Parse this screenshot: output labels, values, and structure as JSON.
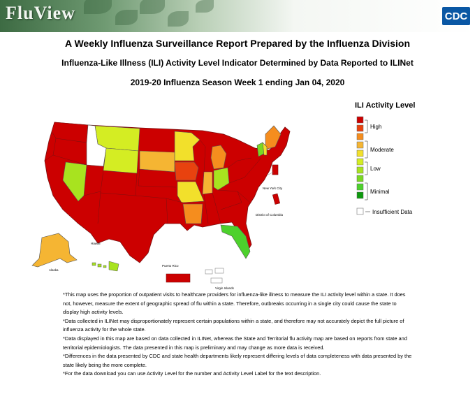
{
  "header": {
    "logo_text": "FluView",
    "agency_logo": "CDC"
  },
  "titles": {
    "main": "A Weekly Influenza Surveillance Report Prepared by the Influenza Division",
    "sub": "Influenza-Like Illness (ILI) Activity Level Indicator Determined by Data Reported to ILINet",
    "week": "2019-20 Influenza Season Week 1 ending Jan 04, 2020"
  },
  "legend": {
    "title": "ILI Activity Level",
    "levels": [
      {
        "level": 10,
        "color": "#cc0000"
      },
      {
        "level": 9,
        "color": "#e8420f"
      },
      {
        "level": 8,
        "color": "#f58d1e"
      },
      {
        "level": 7,
        "color": "#f5b533"
      },
      {
        "level": 6,
        "color": "#f2e02b"
      },
      {
        "level": 5,
        "color": "#d4ed23"
      },
      {
        "level": 4,
        "color": "#a8e31f"
      },
      {
        "level": 3,
        "color": "#79d823"
      },
      {
        "level": 2,
        "color": "#4dd12c"
      },
      {
        "level": 1,
        "color": "#0d9a0d"
      }
    ],
    "group_labels": [
      "High",
      "Moderate",
      "Low",
      "Minimal"
    ],
    "insufficient_label": "Insufficient Data"
  },
  "map_labels": {
    "hawaii": "Hawaii",
    "alaska": "Alaska",
    "puerto_rico": "Puerto Rico",
    "virgin_islands": "Virgin Islands",
    "new_york_city": "New York City",
    "dc": "District of Columbia"
  },
  "state_colors": {
    "high": "#cc0000",
    "mod_high": "#e8420f",
    "orange": "#f58d1e",
    "mod_low": "#f5b533",
    "moderate_yellow": "#f2e02b",
    "low": "#d4ed23",
    "lime": "#a8e31f",
    "minimal_light": "#79d823",
    "minimal_green": "#4dd12c",
    "insufficient": "#ffffff"
  },
  "notes": [
    "*This map uses the proportion of outpatient visits to healthcare providers for influenza-like illness to measure the ILI activity level within a state. It does not, however, measure the extent of geographic spread of flu within a state. Therefore, outbreaks occurring in a single city could cause the state to display high activity levels.",
    "*Data collected in ILINet may disproportionately represent certain populations within a state, and therefore may not accurately depict the full picture of influenza activity for the whole state.",
    "*Data displayed in this map are based on data collected in ILINet, whereas the State and Territorial flu activity map are based on reports from state and territorial epidemiologists. The data presented in this map is preliminary and may change as more data is received.",
    "*Differences in the data presented by CDC and state health departments likely represent differing levels of data completeness with data presented by the state likely being the more complete.",
    "*For the data download you can use Activity Level for the number and Activity Level Label for the text description."
  ]
}
